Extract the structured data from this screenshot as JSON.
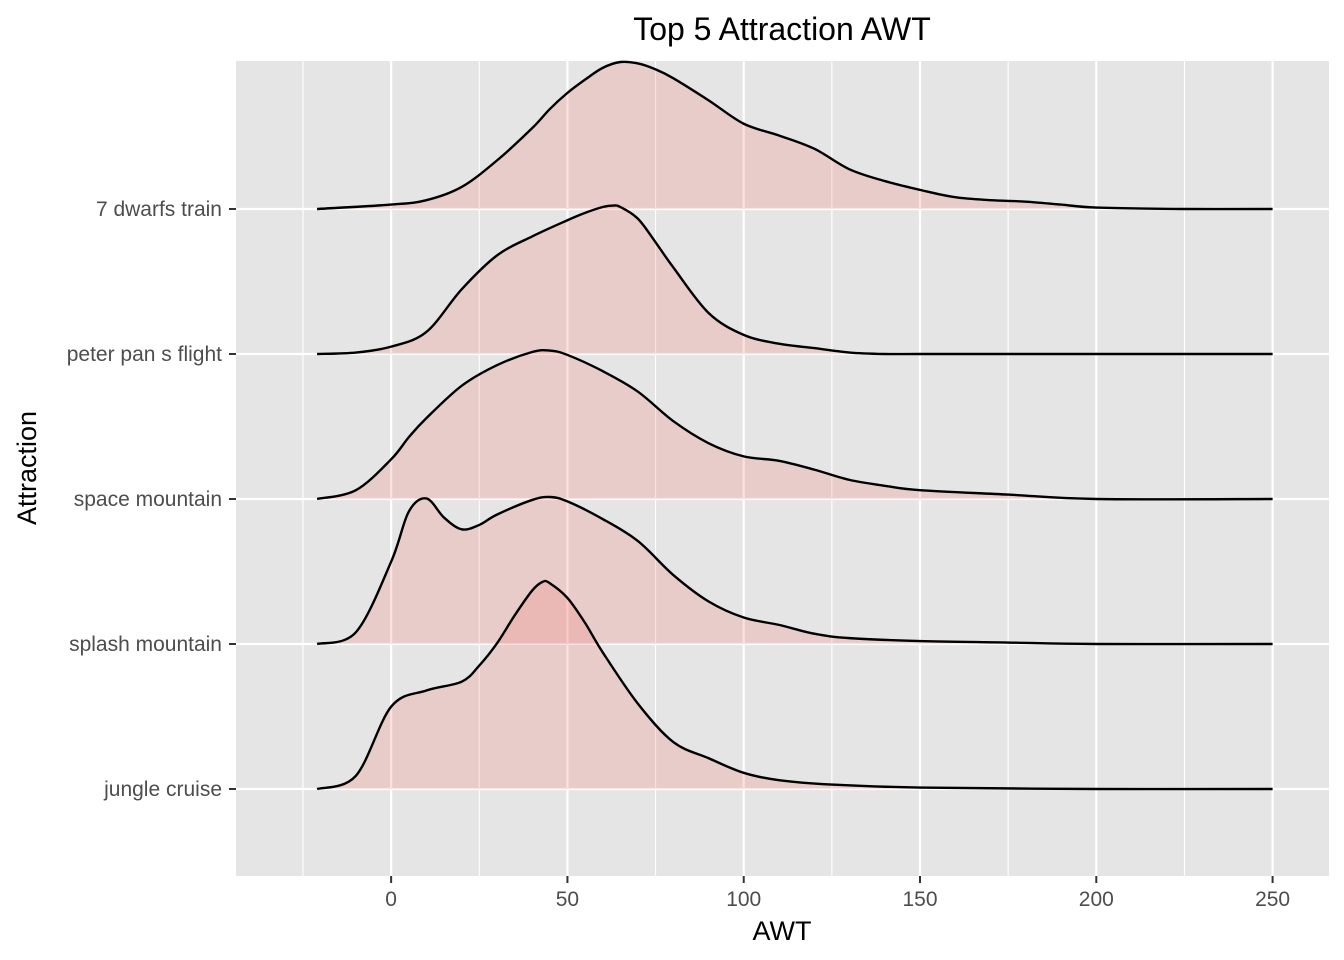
{
  "chart_data": {
    "type": "area",
    "subtype": "ridgeline-density",
    "title": "Top 5 Attraction AWT",
    "xlabel": "AWT",
    "ylabel": "Attraction",
    "xlim": [
      -44,
      266
    ],
    "x_ticks": [
      0,
      50,
      100,
      150,
      200,
      250
    ],
    "x_tick_labels": [
      "0",
      "50",
      "100",
      "150",
      "200",
      "250"
    ],
    "categories": [
      "7 dwarfs train",
      "peter pan s flight",
      "space mountain",
      "splash mountain",
      "jungle cruise"
    ],
    "grid": true,
    "legend": "none",
    "colors": {
      "panel_background": "#e5e5e5",
      "grid_line": "#ffffff",
      "fill": "#f8766d",
      "fill_opacity": 0.22,
      "line": "#000000"
    },
    "series": [
      {
        "name": "7 dwarfs train",
        "x": [
          -21,
          0,
          10,
          20,
          30,
          40,
          45,
          50,
          55,
          60,
          65,
          70,
          75,
          80,
          90,
          100,
          110,
          120,
          130,
          140,
          150,
          160,
          170,
          180,
          190,
          200,
          225,
          250
        ],
        "y": [
          0.0,
          0.03,
          0.06,
          0.15,
          0.33,
          0.55,
          0.68,
          0.79,
          0.88,
          0.96,
          1.0,
          0.99,
          0.95,
          0.89,
          0.74,
          0.58,
          0.5,
          0.41,
          0.27,
          0.19,
          0.13,
          0.08,
          0.06,
          0.05,
          0.03,
          0.01,
          0.0,
          0.0
        ]
      },
      {
        "name": "peter pan s flight",
        "x": [
          -21,
          -10,
          0,
          10,
          20,
          30,
          40,
          50,
          55,
          60,
          63,
          65,
          70,
          75,
          80,
          90,
          100,
          110,
          120,
          130,
          140,
          150,
          175,
          200,
          250
        ],
        "y": [
          0.0,
          0.01,
          0.05,
          0.15,
          0.44,
          0.67,
          0.8,
          0.91,
          0.96,
          1.0,
          1.01,
          1.0,
          0.92,
          0.76,
          0.59,
          0.28,
          0.13,
          0.07,
          0.04,
          0.01,
          0.0,
          0.0,
          0.0,
          0.0,
          0.0
        ]
      },
      {
        "name": "space mountain",
        "x": [
          -21,
          -10,
          0,
          5,
          10,
          20,
          30,
          40,
          45,
          50,
          60,
          70,
          80,
          90,
          100,
          110,
          120,
          130,
          140,
          150,
          175,
          200,
          250
        ],
        "y": [
          0.0,
          0.06,
          0.27,
          0.42,
          0.55,
          0.77,
          0.91,
          1.0,
          1.01,
          0.98,
          0.87,
          0.73,
          0.53,
          0.38,
          0.29,
          0.26,
          0.2,
          0.13,
          0.09,
          0.06,
          0.03,
          0.0,
          0.0
        ]
      },
      {
        "name": "splash mountain",
        "x": [
          -21,
          -10,
          0,
          5,
          10,
          15,
          20,
          25,
          30,
          40,
          45,
          50,
          60,
          70,
          80,
          90,
          100,
          110,
          120,
          130,
          150,
          175,
          200,
          250
        ],
        "y": [
          0.0,
          0.08,
          0.56,
          0.9,
          0.99,
          0.86,
          0.78,
          0.81,
          0.88,
          0.98,
          1.0,
          0.97,
          0.85,
          0.7,
          0.47,
          0.29,
          0.18,
          0.13,
          0.07,
          0.04,
          0.02,
          0.01,
          0.0,
          0.0
        ]
      },
      {
        "name": "jungle cruise",
        "x": [
          -21,
          -10,
          0,
          10,
          20,
          25,
          30,
          35,
          40,
          43,
          45,
          50,
          55,
          60,
          70,
          80,
          90,
          100,
          110,
          125,
          150,
          200,
          250
        ],
        "y": [
          0.0,
          0.09,
          0.56,
          0.67,
          0.73,
          0.84,
          0.99,
          1.18,
          1.35,
          1.41,
          1.4,
          1.3,
          1.13,
          0.93,
          0.58,
          0.32,
          0.21,
          0.11,
          0.06,
          0.03,
          0.01,
          0.0,
          0.0
        ]
      }
    ]
  }
}
